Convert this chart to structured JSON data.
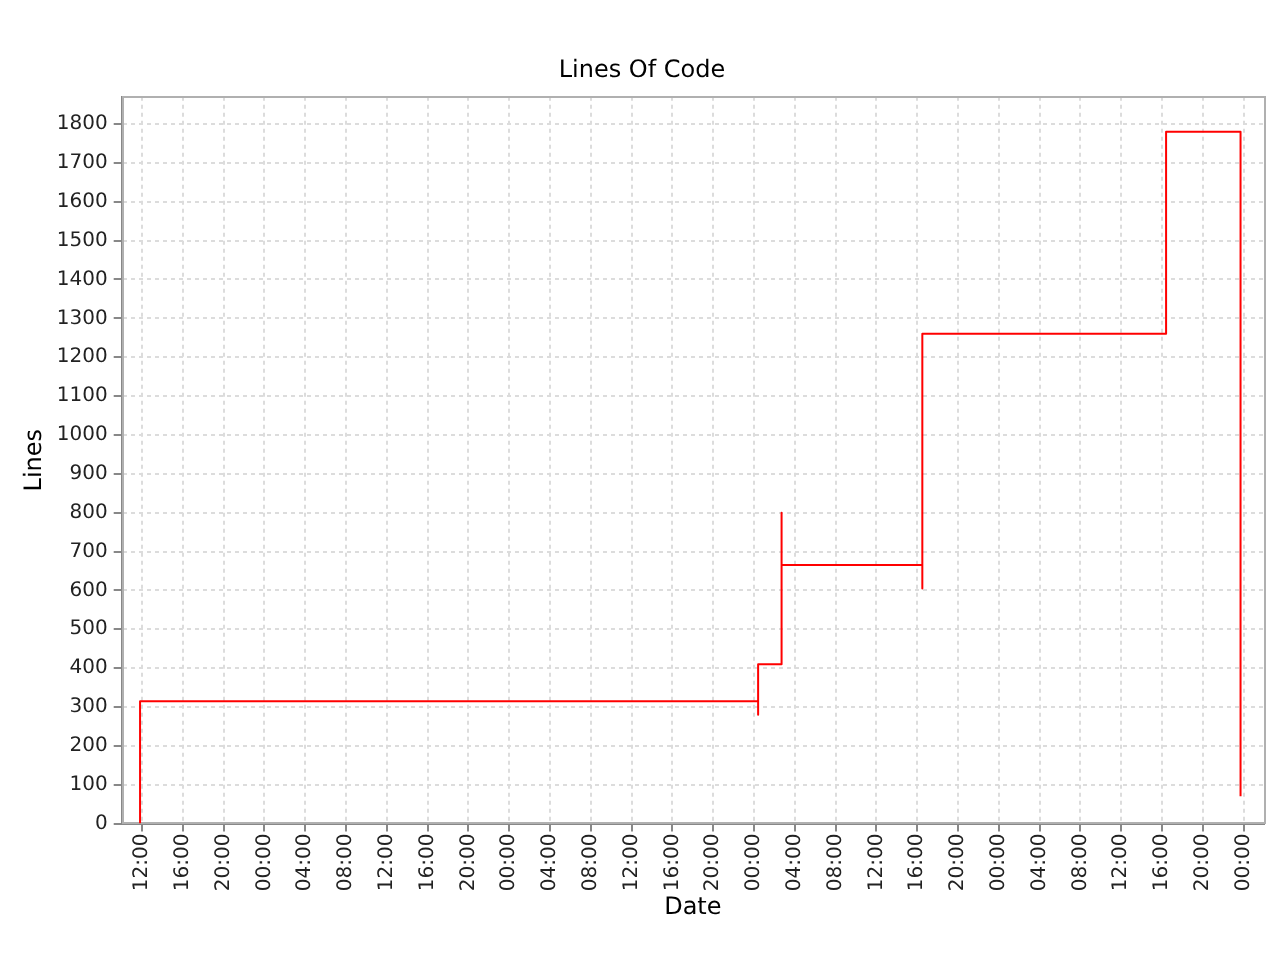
{
  "chart_data": {
    "type": "step",
    "subtitle": "Lines Of Code",
    "xlabel": "Date",
    "ylabel": "Lines",
    "x": [
      "--01-01T11:48",
      "--01-01T11:48",
      "--01-04T00:24",
      "--01-04T00:24",
      "--01-04T02:42",
      "--01-04T02:42",
      "--01-04T16:30",
      "--01-04T16:30",
      "--01-05T16:24",
      "--01-05T23:42"
    ],
    "series": [
      {
        "color": "#ff0000",
        "values": [
          0,
          315,
          280,
          410,
          800,
          665,
          605,
          1260,
          1780,
          70
        ]
      }
    ],
    "xlim": [
      "--01-01T10:00",
      "--01-06T02:00"
    ],
    "xticks": [
      {
        "value": "--01-01T12:00",
        "label": "12:00"
      },
      {
        "value": "--01-01T16:00",
        "label": "16:00"
      },
      {
        "value": "--01-01T20:00",
        "label": "20:00"
      },
      {
        "value": "--01-02T00:00",
        "label": "00:00"
      },
      {
        "value": "--01-02T04:00",
        "label": "04:00"
      },
      {
        "value": "--01-02T08:00",
        "label": "08:00"
      },
      {
        "value": "--01-02T12:00",
        "label": "12:00"
      },
      {
        "value": "--01-02T16:00",
        "label": "16:00"
      },
      {
        "value": "--01-02T20:00",
        "label": "20:00"
      },
      {
        "value": "--01-03T00:00",
        "label": "00:00"
      },
      {
        "value": "--01-03T04:00",
        "label": "04:00"
      },
      {
        "value": "--01-03T08:00",
        "label": "08:00"
      },
      {
        "value": "--01-03T12:00",
        "label": "12:00"
      },
      {
        "value": "--01-03T16:00",
        "label": "16:00"
      },
      {
        "value": "--01-03T20:00",
        "label": "20:00"
      },
      {
        "value": "--01-04T00:00",
        "label": "00:00"
      },
      {
        "value": "--01-04T04:00",
        "label": "04:00"
      },
      {
        "value": "--01-04T08:00",
        "label": "08:00"
      },
      {
        "value": "--01-04T12:00",
        "label": "12:00"
      },
      {
        "value": "--01-04T16:00",
        "label": "16:00"
      },
      {
        "value": "--01-04T20:00",
        "label": "20:00"
      },
      {
        "value": "--01-05T00:00",
        "label": "00:00"
      },
      {
        "value": "--01-05T04:00",
        "label": "04:00"
      },
      {
        "value": "--01-05T08:00",
        "label": "08:00"
      },
      {
        "value": "--01-05T12:00",
        "label": "12:00"
      },
      {
        "value": "--01-05T16:00",
        "label": "16:00"
      },
      {
        "value": "--01-05T20:00",
        "label": "20:00"
      },
      {
        "value": "--01-06T00:00",
        "label": "00:00"
      }
    ],
    "ylim": [
      0,
      1870
    ],
    "yticks": [
      0,
      100,
      200,
      300,
      400,
      500,
      600,
      700,
      800,
      900,
      1000,
      1100,
      1200,
      1300,
      1400,
      1500,
      1600,
      1700,
      1800
    ],
    "grid": true,
    "marker": "none",
    "line_style": "solid"
  }
}
